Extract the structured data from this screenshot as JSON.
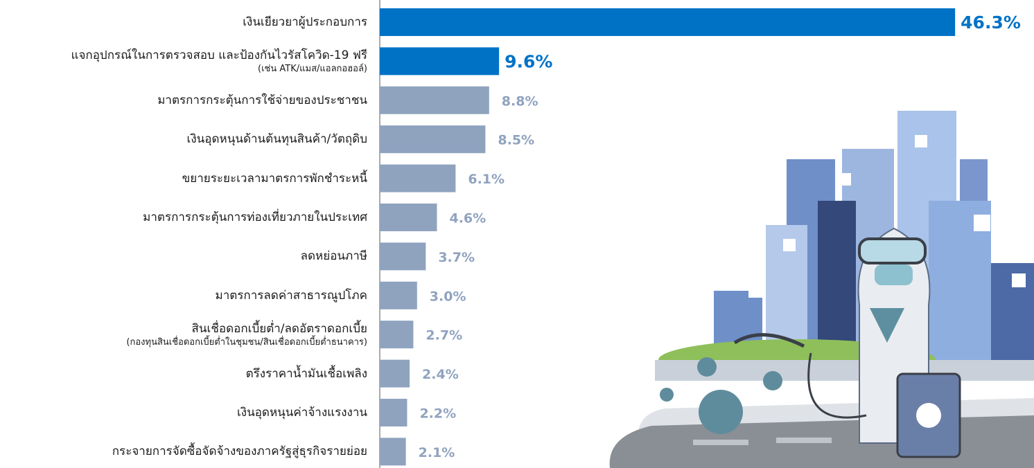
{
  "chart_data": {
    "type": "bar",
    "orientation": "horizontal",
    "categories": [
      "เงินเยียวยาผู้ประกอบการ",
      "แจกอุปกรณ์ในการตรวจสอบ และป้องกันไวรัสโควิด-19 ฟรี\n(เช่น ATK/แมส/แอลกอฮอล์)",
      "มาตรการกระตุ้นการใช้จ่ายของประชาชน",
      "เงินอุดหนุนด้านต้นทุนสินค้า/วัตถุดิบ",
      "ขยายระยะเวลามาตรการพักชำระหนี้",
      "มาตรการกระตุ้นการท่องเที่ยวภายในประเทศ",
      "ลดหย่อนภาษี",
      "มาตรการลดค่าสาธารณูปโภค",
      "สินเชื่อดอกเบี้ยต่ำ/ลดอัตราดอกเบี้ย\n(กองทุนสินเชื่อดอกเบี้ยต่ำในชุมชน/สินเชื่อดอกเบี้ยต่ำธนาคาร)",
      "ตรึงราคาน้ำมันเชื้อเพลิง",
      "เงินอุดหนุนค่าจ้างแรงงาน",
      "กระจายการจัดซื้อจัดจ้างของภาครัฐสู่ธุรกิจรายย่อย"
    ],
    "values": [
      46.3,
      9.6,
      8.8,
      8.5,
      6.1,
      4.6,
      3.7,
      3.0,
      2.7,
      2.4,
      2.2,
      2.1
    ],
    "value_labels": [
      "46.3%",
      "9.6%",
      "8.8%",
      "8.5%",
      "6.1%",
      "4.6%",
      "3.7%",
      "3.0%",
      "2.7%",
      "2.4%",
      "2.2%",
      "2.1%"
    ],
    "colors": [
      "#0072c6",
      "#0072c6",
      "#8fa3bf",
      "#8fa3bf",
      "#8fa3bf",
      "#8fa3bf",
      "#8fa3bf",
      "#8fa3bf",
      "#8fa3bf",
      "#8fa3bf",
      "#8fa3bf",
      "#8fa3bf"
    ]
  }
}
